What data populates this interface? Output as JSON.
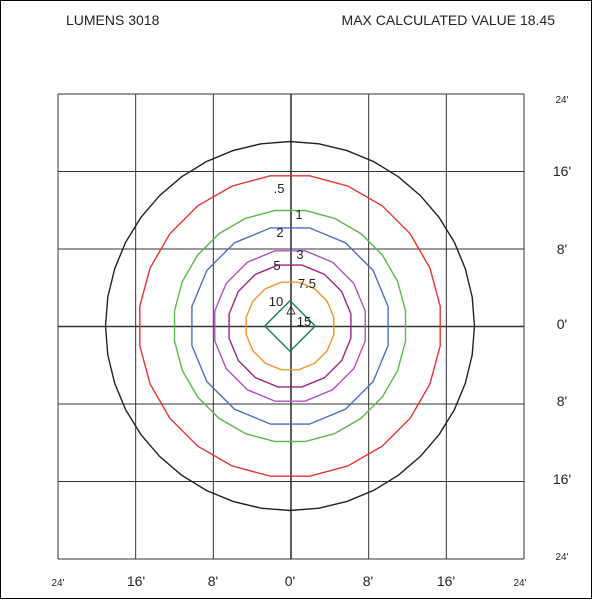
{
  "header": {
    "lumens_label": "LUMENS 3018",
    "max_label": "MAX CALCULATED VALUE 18.45"
  },
  "chart_data": {
    "type": "contour",
    "title": "",
    "x_ticks": [
      "24'",
      "16'",
      "8'",
      "0'",
      "8'",
      "16'",
      "24'"
    ],
    "y_ticks": [
      "24'",
      "16'",
      "8'",
      "0'",
      "8'",
      "16'",
      "24'"
    ],
    "xlim": [
      -24,
      24
    ],
    "ylim": [
      -24,
      24
    ],
    "grid": true,
    "series": [
      {
        "name": ".5",
        "radius_ft": 19.0,
        "color": "#222222",
        "shape": "circle"
      },
      {
        "name": "1",
        "radius_ft": 15.6,
        "color": "#e8332e",
        "shape": "polygon"
      },
      {
        "name": "2",
        "radius_ft": 12.0,
        "color": "#5cb84a",
        "shape": "polygon"
      },
      {
        "name": "3",
        "radius_ft": 10.3,
        "color": "#4a6fc4",
        "shape": "polygon"
      },
      {
        "name": "5",
        "radius_ft": 7.9,
        "color": "#b34fc4",
        "shape": "polygon"
      },
      {
        "name": "7.5",
        "radius_ft": 6.4,
        "color": "#a0208a",
        "shape": "polygon"
      },
      {
        "name": "10",
        "radius_ft": 4.6,
        "color": "#f0962a",
        "shape": "polygon"
      },
      {
        "name": "15",
        "radius_ft": 2.6,
        "color": "#1a8050",
        "shape": "diamond"
      }
    ]
  }
}
